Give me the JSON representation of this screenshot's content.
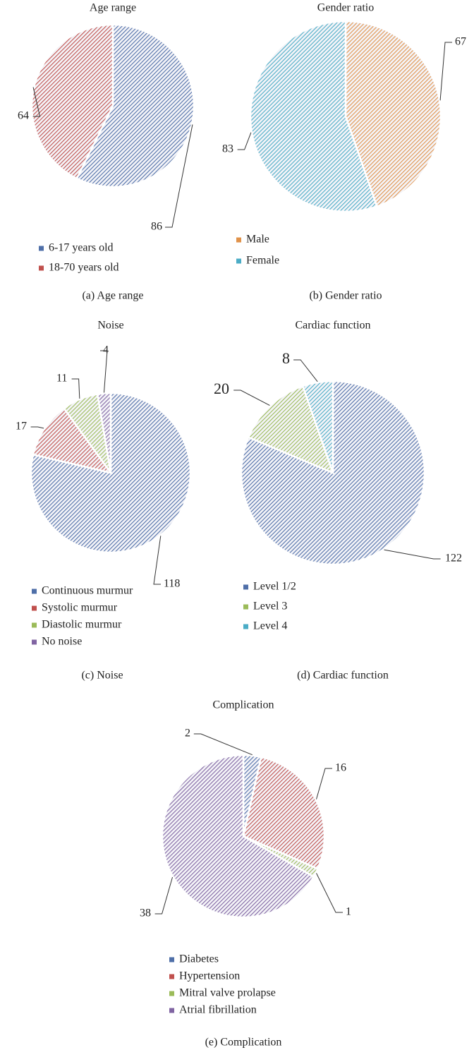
{
  "chart_data": [
    {
      "type": "pie",
      "title": "Age range",
      "caption": "(a) Age range",
      "categories": [
        "6-17 years old",
        "18-70 years old"
      ],
      "values": [
        86,
        64
      ],
      "colors": [
        "#4f6fa8",
        "#c0504d"
      ]
    },
    {
      "type": "pie",
      "title": "Gender ratio",
      "caption": "(b) Gender ratio",
      "categories": [
        "Male",
        "Female"
      ],
      "values": [
        67,
        83
      ],
      "colors": [
        "#e0924a",
        "#4bacc6"
      ]
    },
    {
      "type": "pie",
      "title": "Noise",
      "caption": "(c) Noise",
      "categories": [
        "Continuous murmur",
        "Systolic murmur",
        "Diastolic murmur",
        "No noise"
      ],
      "values": [
        118,
        17,
        11,
        4
      ],
      "colors": [
        "#4f6fa8",
        "#c0504d",
        "#9bbb59",
        "#8064a2"
      ]
    },
    {
      "type": "pie",
      "title": "Cardiac function",
      "caption": "(d) Cardiac function",
      "categories": [
        "Level 1/2",
        "Level 3",
        "Level 4"
      ],
      "values": [
        122,
        20,
        8
      ],
      "colors": [
        "#4f6fa8",
        "#9bbb59",
        "#4bacc6"
      ]
    },
    {
      "type": "pie",
      "title": "Complication",
      "caption": "(e) Complication",
      "categories": [
        "Diabetes",
        "Hypertension",
        "Mitral valve prolapse",
        "Atrial fibrillation"
      ],
      "values": [
        2,
        16,
        1,
        38
      ],
      "colors": [
        "#4f6fa8",
        "#c0504d",
        "#9bbb59",
        "#8064a2"
      ]
    }
  ]
}
